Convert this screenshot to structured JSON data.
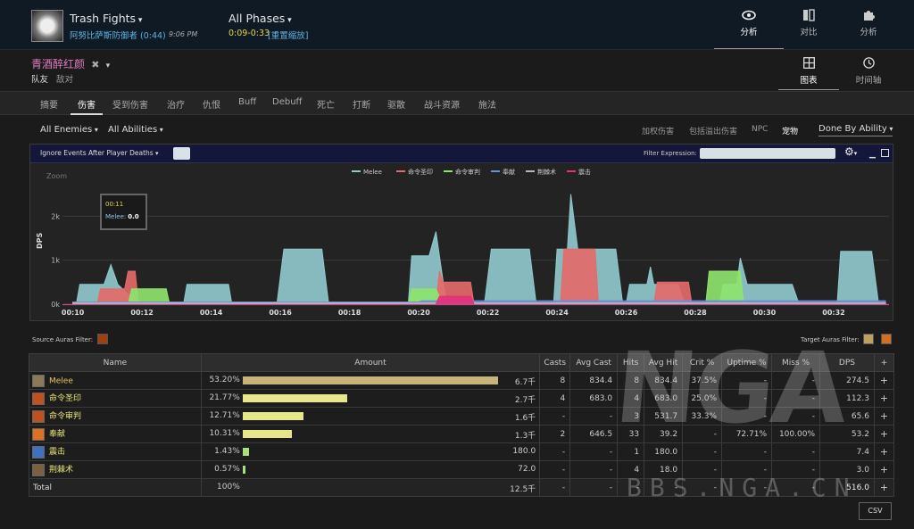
{
  "header": {
    "fight_title": "Trash Fights",
    "fight_subtitle": "阿努比萨斯防御者 (0:44)",
    "fight_time": "9:06 PM",
    "phase_title": "All Phases",
    "phase_range": "0:09-0:33",
    "phase_reset": "[重置缩放]",
    "nav": [
      {
        "label": "分析",
        "icon": "eye-icon"
      },
      {
        "label": "对比",
        "icon": "compare-icon"
      },
      {
        "label": "分析",
        "icon": "puzzle-icon"
      }
    ]
  },
  "actor": {
    "name": "青酒醉红颜",
    "close_glyph": "✖",
    "friend_label": "队友",
    "enemy_label": "敌对"
  },
  "views": [
    {
      "label": "图表",
      "icon": "grid-icon"
    },
    {
      "label": "时间轴",
      "icon": "clock-icon"
    }
  ],
  "tabs": [
    "摘要",
    "伤害",
    "受到伤害",
    "治疗",
    "仇恨",
    "Buff",
    "Debuff",
    "死亡",
    "打断",
    "驱散",
    "战斗资源",
    "施法"
  ],
  "filters": {
    "enemies": "All Enemies",
    "abilities": "All Abilities",
    "options": [
      "加权伤害",
      "包括溢出伤害",
      "NPC",
      "宠物"
    ],
    "done_by": "Done By Ability"
  },
  "chart_toolbar": {
    "ignore_label": "Ignore Events After Player Deaths",
    "filter_label": "Filter Expression:"
  },
  "tooltip": {
    "time": "00:11",
    "series": "Melee:",
    "value": "0.0"
  },
  "chart_data": {
    "type": "area",
    "zoom_label": "Zoom",
    "ylabel": "DPS",
    "ylim": [
      0,
      3000
    ],
    "yticks": [
      {
        "v": 0,
        "label": "0k"
      },
      {
        "v": 1000,
        "label": "1k"
      },
      {
        "v": 2000,
        "label": "2k"
      }
    ],
    "xlim": [
      9.7,
      33.6
    ],
    "xticks": [
      {
        "v": 10,
        "label": "00:10"
      },
      {
        "v": 12,
        "label": "00:12"
      },
      {
        "v": 14,
        "label": "00:14"
      },
      {
        "v": 16,
        "label": "00:16"
      },
      {
        "v": 18,
        "label": "00:18"
      },
      {
        "v": 20,
        "label": "00:20"
      },
      {
        "v": 22,
        "label": "00:22"
      },
      {
        "v": 24,
        "label": "00:24"
      },
      {
        "v": 26,
        "label": "00:26"
      },
      {
        "v": 28,
        "label": "00:28"
      },
      {
        "v": 30,
        "label": "00:30"
      },
      {
        "v": 32,
        "label": "00:32"
      }
    ],
    "series": [
      {
        "name": "Melee",
        "color": "#8fc8cc",
        "points": [
          [
            10.1,
            0
          ],
          [
            10.2,
            450
          ],
          [
            10.9,
            450
          ],
          [
            11.1,
            900
          ],
          [
            11.3,
            450
          ],
          [
            11.9,
            0
          ],
          [
            12.1,
            0
          ],
          [
            13.2,
            0
          ],
          [
            13.3,
            450
          ],
          [
            14.5,
            450
          ],
          [
            14.6,
            0
          ],
          [
            15.9,
            0
          ],
          [
            16.1,
            1250
          ],
          [
            17.2,
            1250
          ],
          [
            17.4,
            0
          ],
          [
            19.7,
            0
          ],
          [
            19.8,
            1100
          ],
          [
            20.3,
            1100
          ],
          [
            20.5,
            1650
          ],
          [
            20.6,
            1100
          ],
          [
            20.8,
            0
          ],
          [
            21.9,
            0
          ],
          [
            22.1,
            1250
          ],
          [
            23.2,
            1250
          ],
          [
            23.4,
            0
          ],
          [
            23.9,
            0
          ],
          [
            24.0,
            1250
          ],
          [
            24.3,
            1250
          ],
          [
            24.4,
            2500
          ],
          [
            24.6,
            1250
          ],
          [
            25.7,
            1250
          ],
          [
            25.9,
            0
          ],
          [
            26.0,
            0
          ],
          [
            26.1,
            450
          ],
          [
            26.6,
            450
          ],
          [
            26.7,
            850
          ],
          [
            26.8,
            450
          ],
          [
            27.5,
            450
          ],
          [
            27.7,
            0
          ],
          [
            28.7,
            0
          ],
          [
            28.8,
            450
          ],
          [
            29.2,
            450
          ],
          [
            29.3,
            1050
          ],
          [
            29.5,
            450
          ],
          [
            30.8,
            450
          ],
          [
            31.0,
            0
          ],
          [
            32.1,
            0
          ],
          [
            32.2,
            1200
          ],
          [
            33.1,
            1200
          ],
          [
            33.3,
            0
          ]
        ]
      },
      {
        "name": "命令圣印",
        "color": "#e46a6a",
        "points": [
          [
            10.7,
            0
          ],
          [
            10.8,
            350
          ],
          [
            11.5,
            350
          ],
          [
            11.6,
            750
          ],
          [
            11.8,
            750
          ],
          [
            11.9,
            0
          ],
          [
            20.5,
            0
          ],
          [
            20.6,
            750
          ],
          [
            20.7,
            500
          ],
          [
            21.5,
            500
          ],
          [
            21.6,
            0
          ],
          [
            24.1,
            0
          ],
          [
            24.2,
            1250
          ],
          [
            25.1,
            1250
          ],
          [
            25.2,
            0
          ],
          [
            26.8,
            0
          ],
          [
            26.9,
            500
          ],
          [
            27.8,
            500
          ],
          [
            27.9,
            0
          ]
        ]
      },
      {
        "name": "命令审判",
        "color": "#8ee36e",
        "points": [
          [
            11.6,
            0
          ],
          [
            11.7,
            350
          ],
          [
            12.7,
            350
          ],
          [
            12.8,
            0
          ],
          [
            19.7,
            0
          ],
          [
            19.8,
            350
          ],
          [
            20.5,
            350
          ],
          [
            20.7,
            0
          ],
          [
            28.3,
            0
          ],
          [
            28.4,
            750
          ],
          [
            29.3,
            750
          ],
          [
            29.4,
            0
          ]
        ]
      },
      {
        "name": "奉献",
        "color": "#6a8ed8",
        "points": [
          [
            10.0,
            50
          ],
          [
            20.0,
            50
          ],
          [
            20.1,
            80
          ],
          [
            33.5,
            80
          ]
        ]
      },
      {
        "name": "荆棘术",
        "color": "#b8b8b8",
        "points": [
          [
            10.0,
            30
          ],
          [
            33.5,
            30
          ]
        ]
      },
      {
        "name": "震击",
        "color": "#e4307a",
        "points": [
          [
            20.5,
            0
          ],
          [
            20.6,
            180
          ],
          [
            21.5,
            180
          ],
          [
            21.6,
            0
          ]
        ]
      }
    ]
  },
  "aura_filters": {
    "source_label": "Source Auras Filter:",
    "target_label": "Target Auras Filter:"
  },
  "table": {
    "headers": [
      "Name",
      "Amount",
      "Casts",
      "Avg Cast",
      "Hits",
      "Avg Hit",
      "Crit %",
      "Uptime %",
      "Miss %",
      "DPS",
      "+"
    ],
    "rows": [
      {
        "name": "Melee",
        "name_color": "#e8c46a",
        "icon_color": "#8a7a5a",
        "pct": "53.20%",
        "bar": 53.2,
        "bar_color": "#c8b47a",
        "amount": "6.7千",
        "casts": "8",
        "avg_cast": "834.4",
        "hits": "8",
        "avg_hit": "834.4",
        "crit": "37.5%",
        "uptime": "-",
        "miss": "-",
        "dps": "274.5"
      },
      {
        "name": "命令圣印",
        "name_color": "#e6e67a",
        "icon_color": "#c05020",
        "pct": "21.77%",
        "bar": 21.77,
        "bar_color": "#e6e68a",
        "amount": "2.7千",
        "casts": "4",
        "avg_cast": "683.0",
        "hits": "4",
        "avg_hit": "683.0",
        "crit": "25.0%",
        "uptime": "-",
        "miss": "-",
        "dps": "112.3"
      },
      {
        "name": "命令审判",
        "name_color": "#e6e67a",
        "icon_color": "#c05020",
        "pct": "12.71%",
        "bar": 12.71,
        "bar_color": "#e6e68a",
        "amount": "1.6千",
        "casts": "-",
        "avg_cast": "-",
        "hits": "3",
        "avg_hit": "531.7",
        "crit": "33.3%",
        "uptime": "-",
        "miss": "-",
        "dps": "65.6"
      },
      {
        "name": "奉献",
        "name_color": "#e6e67a",
        "icon_color": "#e07020",
        "pct": "10.31%",
        "bar": 10.31,
        "bar_color": "#e6e68a",
        "amount": "1.3千",
        "casts": "2",
        "avg_cast": "646.5",
        "hits": "33",
        "avg_hit": "39.2",
        "crit": "-",
        "uptime": "72.71%",
        "miss": "100.00%",
        "dps": "53.2"
      },
      {
        "name": "震击",
        "name_color": "#e6e67a",
        "icon_color": "#4070c0",
        "pct": "1.43%",
        "bar": 1.43,
        "bar_color": "#a8e07a",
        "amount": "180.0",
        "casts": "-",
        "avg_cast": "-",
        "hits": "1",
        "avg_hit": "180.0",
        "crit": "-",
        "uptime": "-",
        "miss": "-",
        "dps": "7.4"
      },
      {
        "name": "荆棘术",
        "name_color": "#e6e67a",
        "icon_color": "#7a6040",
        "pct": "0.57%",
        "bar": 0.57,
        "bar_color": "#a8e07a",
        "amount": "72.0",
        "casts": "-",
        "avg_cast": "-",
        "hits": "4",
        "avg_hit": "18.0",
        "crit": "-",
        "uptime": "-",
        "miss": "-",
        "dps": "3.0"
      }
    ],
    "total": {
      "label": "Total",
      "pct": "100%",
      "amount": "12.5千",
      "casts": "-",
      "avg_cast": "-",
      "hits": "-",
      "avg_hit": "-",
      "crit": "-",
      "uptime": "-",
      "miss": "-",
      "dps": "516.0"
    }
  },
  "watermark": {
    "big": "NGA",
    "small": "BBS.NGA.CN"
  },
  "csv_label": "CSV"
}
